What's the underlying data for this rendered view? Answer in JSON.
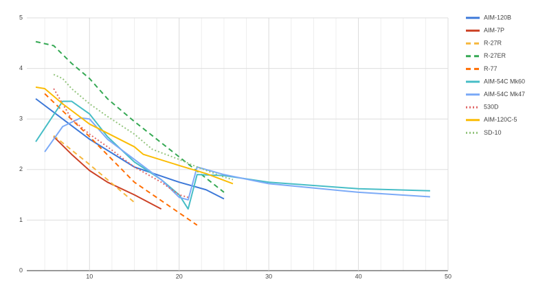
{
  "chart_data": {
    "type": "line",
    "xlim": [
      3,
      50
    ],
    "xticks": [
      10,
      20,
      30,
      40,
      50
    ],
    "x_minor_step": 2.5,
    "ylim": [
      0,
      5
    ],
    "yticks": [
      0,
      1,
      2,
      3,
      4,
      5
    ],
    "grid": true,
    "legend": "right",
    "series": [
      {
        "name": "AIM-120B",
        "color": "#3c78d8",
        "dash": "solid",
        "x": [
          4,
          7,
          10,
          15,
          20,
          23,
          25
        ],
        "values": [
          3.4,
          3.0,
          2.6,
          2.05,
          1.75,
          1.6,
          1.42
        ]
      },
      {
        "name": "AIM-7P",
        "color": "#cc4125",
        "dash": "solid",
        "x": [
          6,
          8,
          10,
          12,
          15,
          18
        ],
        "values": [
          2.65,
          2.3,
          1.98,
          1.75,
          1.5,
          1.22
        ]
      },
      {
        "name": "R-27R",
        "color": "#f6b73c",
        "dash": "dashed",
        "x": [
          6,
          10,
          15
        ],
        "values": [
          2.67,
          2.1,
          1.35
        ]
      },
      {
        "name": "R-27ER",
        "color": "#34a853",
        "dash": "dashed",
        "x": [
          4,
          6,
          8,
          10,
          12,
          15,
          20,
          25
        ],
        "values": [
          4.53,
          4.45,
          4.1,
          3.8,
          3.4,
          2.95,
          2.25,
          1.55
        ]
      },
      {
        "name": "R-77",
        "color": "#ff6d01",
        "dash": "dashed",
        "x": [
          5,
          10,
          15,
          22
        ],
        "values": [
          3.5,
          2.65,
          1.75,
          0.9
        ]
      },
      {
        "name": "AIM-54C Mk60",
        "color": "#46bdc6",
        "dash": "solid",
        "x": [
          4,
          7,
          8,
          10,
          12,
          15,
          18,
          20,
          21,
          22,
          25,
          30,
          40,
          48
        ],
        "values": [
          2.55,
          3.35,
          3.35,
          3.1,
          2.65,
          2.15,
          1.8,
          1.5,
          1.22,
          1.9,
          1.88,
          1.75,
          1.62,
          1.58
        ]
      },
      {
        "name": "AIM-54C Mk47",
        "color": "#7baaf7",
        "dash": "solid",
        "x": [
          5,
          7,
          9,
          10,
          12,
          15,
          18,
          20,
          21,
          22,
          25,
          30,
          40,
          48
        ],
        "values": [
          2.35,
          2.85,
          3.02,
          3.0,
          2.6,
          2.2,
          1.8,
          1.45,
          1.4,
          2.05,
          1.9,
          1.72,
          1.55,
          1.46
        ]
      },
      {
        "name": "530D",
        "color": "#e06666",
        "dash": "dotted",
        "x": [
          6,
          8,
          10,
          12,
          15,
          18,
          20,
          21
        ],
        "values": [
          3.6,
          3.0,
          2.7,
          2.45,
          2.05,
          1.75,
          1.5,
          1.45
        ]
      },
      {
        "name": "AIM-120C-5",
        "color": "#fbbc04",
        "dash": "solid",
        "x": [
          4,
          5,
          7,
          10,
          15,
          16,
          20,
          23,
          26
        ],
        "values": [
          3.63,
          3.6,
          3.3,
          2.9,
          2.45,
          2.3,
          2.08,
          1.92,
          1.72
        ]
      },
      {
        "name": "SD-10",
        "color": "#93c47d",
        "dash": "dotted",
        "x": [
          6,
          7,
          8,
          10,
          12,
          15,
          17,
          20,
          22,
          25,
          26
        ],
        "values": [
          3.88,
          3.8,
          3.6,
          3.3,
          3.05,
          2.7,
          2.4,
          2.2,
          2.05,
          1.85,
          1.8
        ]
      }
    ]
  }
}
